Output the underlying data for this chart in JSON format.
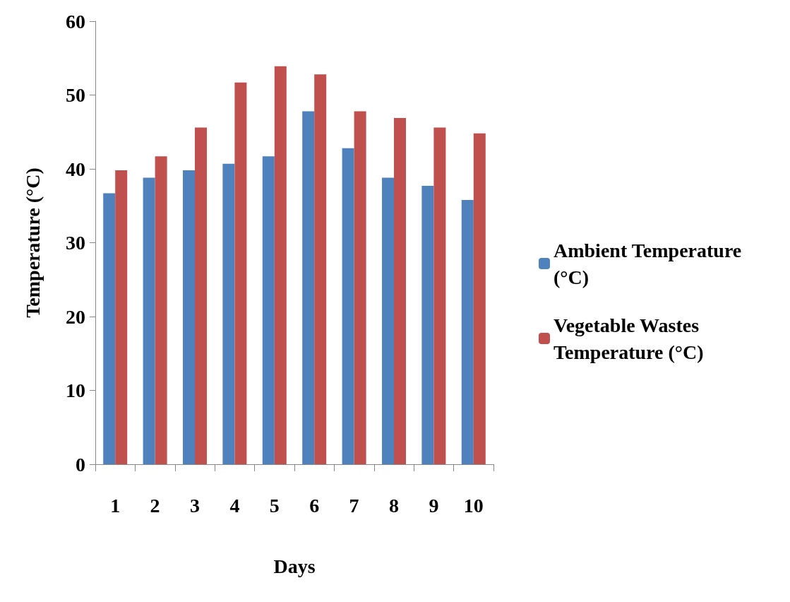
{
  "chart_data": {
    "type": "bar",
    "xlabel": "Days",
    "ylabel": "Temperature (°C)",
    "categories": [
      "1",
      "2",
      "3",
      "4",
      "5",
      "6",
      "7",
      "8",
      "9",
      "10"
    ],
    "series": [
      {
        "name": "Ambient Temperature (°C)",
        "color": "#4f81bd",
        "values": [
          36.7,
          38.8,
          39.8,
          40.7,
          41.7,
          47.8,
          42.8,
          38.8,
          37.7,
          35.8
        ]
      },
      {
        "name": "Vegetable Wastes Temperature (°C)",
        "color": "#c0504d",
        "values": [
          39.8,
          41.7,
          45.6,
          51.7,
          53.9,
          52.8,
          47.8,
          46.9,
          45.6,
          44.8
        ]
      }
    ],
    "ylim": [
      0,
      60
    ],
    "yticks": [
      0,
      10,
      20,
      30,
      40,
      50,
      60
    ],
    "grid": false,
    "legend": "right"
  }
}
